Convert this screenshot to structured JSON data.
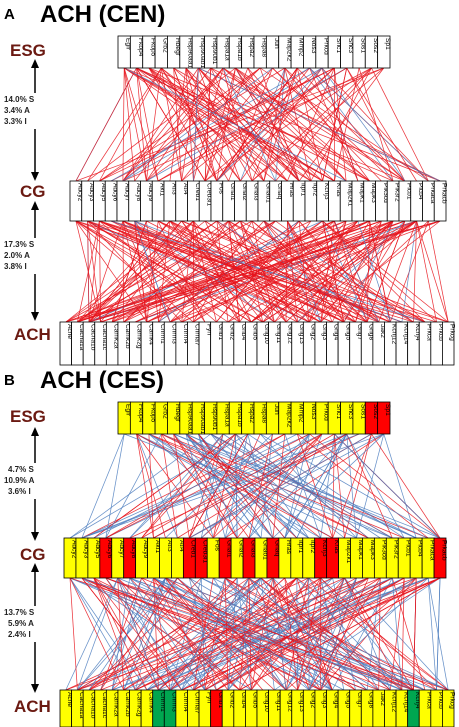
{
  "colors": {
    "red_link": "#e8141c",
    "blue_link": "#4f7fc0",
    "level_label": "#6b1a12",
    "box_yellow": "#ffff00",
    "box_red": "#ff0000",
    "box_green": "#00a650",
    "box_white": "#ffffff"
  },
  "panels": [
    {
      "letter": "A",
      "title": "ACH (CEN)",
      "levels": {
        "top": "ESG",
        "middle": "CG",
        "bottom": "ACH"
      },
      "stats_upper": [
        "14.0% S",
        "3.4% A",
        "3.3% I"
      ],
      "stats_lower": [
        "17.3% S",
        "2.0% A",
        "3.8% I"
      ],
      "esg_genes": [
        {
          "name": "Egfr",
          "color": "white"
        },
        {
          "name": "Fkbp4",
          "color": "white"
        },
        {
          "name": "Fkbp5",
          "color": "white"
        },
        {
          "name": "Grb2",
          "color": "white"
        },
        {
          "name": "Hbegf",
          "color": "white"
        },
        {
          "name": "Hsp90aa1",
          "color": "white"
        },
        {
          "name": "Hsp90ab1",
          "color": "white"
        },
        {
          "name": "Hsp90b1",
          "color": "white"
        },
        {
          "name": "Hspa1a",
          "color": "white"
        },
        {
          "name": "Hspa1b",
          "color": "white"
        },
        {
          "name": "Hspa2",
          "color": "white"
        },
        {
          "name": "Hspa8",
          "color": "white"
        },
        {
          "name": "Jun",
          "color": "white"
        },
        {
          "name": "Map2k2",
          "color": "white"
        },
        {
          "name": "Mmp2",
          "color": "white"
        },
        {
          "name": "Nos3",
          "color": "white"
        },
        {
          "name": "Prkcd",
          "color": "white"
        },
        {
          "name": "Shc1",
          "color": "white"
        },
        {
          "name": "Shc3",
          "color": "white"
        },
        {
          "name": "Sos1",
          "color": "white"
        },
        {
          "name": "Sos2",
          "color": "white"
        },
        {
          "name": "Sp1",
          "color": "white"
        }
      ],
      "cg_genes": [
        {
          "name": "Adcy2",
          "color": "white"
        },
        {
          "name": "Adcy3",
          "color": "white"
        },
        {
          "name": "Adcy5",
          "color": "white"
        },
        {
          "name": "Adcy6",
          "color": "white"
        },
        {
          "name": "Adcy7",
          "color": "white"
        },
        {
          "name": "Adcy8",
          "color": "white"
        },
        {
          "name": "Adcy9",
          "color": "white"
        },
        {
          "name": "Akt1",
          "color": "white"
        },
        {
          "name": "Atf3",
          "color": "white"
        },
        {
          "name": "Atf4",
          "color": "white"
        },
        {
          "name": "Creb1",
          "color": "white"
        },
        {
          "name": "Creb3l1",
          "color": "white"
        },
        {
          "name": "Fos",
          "color": "white"
        },
        {
          "name": "Gnai1",
          "color": "white"
        },
        {
          "name": "Gnai2",
          "color": "white"
        },
        {
          "name": "Gnai3",
          "color": "white"
        },
        {
          "name": "Gnao1",
          "color": "white"
        },
        {
          "name": "Gnaq",
          "color": "white"
        },
        {
          "name": "Hras",
          "color": "white"
        },
        {
          "name": "Itpr1",
          "color": "white"
        },
        {
          "name": "Itpr2",
          "color": "white"
        },
        {
          "name": "Kcnj3",
          "color": "white"
        },
        {
          "name": "Kras",
          "color": "white"
        },
        {
          "name": "Map2k1",
          "color": "white"
        },
        {
          "name": "Mapk1",
          "color": "white"
        },
        {
          "name": "Mapk3",
          "color": "white"
        },
        {
          "name": "Pik3cd",
          "color": "white"
        },
        {
          "name": "Pik3r2",
          "color": "white"
        },
        {
          "name": "Plcb1",
          "color": "white"
        },
        {
          "name": "Plcb4",
          "color": "white"
        },
        {
          "name": "Prkaca",
          "color": "white"
        },
        {
          "name": "Prkacb",
          "color": "white"
        }
      ],
      "ach_genes": [
        {
          "name": "Ache",
          "color": "white"
        },
        {
          "name": "Cacna1a",
          "color": "white"
        },
        {
          "name": "Cacna1b",
          "color": "white"
        },
        {
          "name": "Cacna1c",
          "color": "white"
        },
        {
          "name": "Camk2a",
          "color": "white"
        },
        {
          "name": "Camk2b",
          "color": "white"
        },
        {
          "name": "Camk2g",
          "color": "white"
        },
        {
          "name": "Camk4",
          "color": "white"
        },
        {
          "name": "Chrm1",
          "color": "white"
        },
        {
          "name": "Chrm3",
          "color": "white"
        },
        {
          "name": "Chrm4",
          "color": "white"
        },
        {
          "name": "Chrna7",
          "color": "white"
        },
        {
          "name": "Fyn",
          "color": "white"
        },
        {
          "name": "Gnb1",
          "color": "white"
        },
        {
          "name": "Gnb2",
          "color": "white"
        },
        {
          "name": "Gnb4",
          "color": "white"
        },
        {
          "name": "Gnb5",
          "color": "white"
        },
        {
          "name": "Gng10",
          "color": "white"
        },
        {
          "name": "Gng11",
          "color": "white"
        },
        {
          "name": "Gng12",
          "color": "white"
        },
        {
          "name": "Gng13",
          "color": "white"
        },
        {
          "name": "Gng2",
          "color": "white"
        },
        {
          "name": "Gng3",
          "color": "white"
        },
        {
          "name": "Gng4",
          "color": "white"
        },
        {
          "name": "Gng5",
          "color": "white"
        },
        {
          "name": "Gng7",
          "color": "white"
        },
        {
          "name": "Gng8",
          "color": "white"
        },
        {
          "name": "Jak2",
          "color": "white"
        },
        {
          "name": "Kcnj12",
          "color": "white"
        },
        {
          "name": "Kcnj14",
          "color": "white"
        },
        {
          "name": "Kcnj4",
          "color": "white"
        },
        {
          "name": "Prkca",
          "color": "white"
        },
        {
          "name": "Prkcb",
          "color": "white"
        },
        {
          "name": "Prkcg",
          "color": "white"
        }
      ]
    },
    {
      "letter": "B",
      "title": "ACH (CES)",
      "levels": {
        "top": "ESG",
        "middle": "CG",
        "bottom": "ACH"
      },
      "stats_upper": [
        "4.7% S",
        "10.9% A",
        "3.6% I"
      ],
      "stats_lower": [
        "13.7% S",
        "5.9% A",
        "2.4% I"
      ],
      "esg_genes": [
        {
          "name": "Egfr",
          "color": "yellow"
        },
        {
          "name": "Fkbp4",
          "color": "yellow"
        },
        {
          "name": "Fkbp5",
          "color": "yellow"
        },
        {
          "name": "Grb2",
          "color": "yellow"
        },
        {
          "name": "Hbegf",
          "color": "yellow"
        },
        {
          "name": "Hsp90aa1",
          "color": "yellow"
        },
        {
          "name": "Hsp90ab1",
          "color": "yellow"
        },
        {
          "name": "Hsp90b1",
          "color": "yellow"
        },
        {
          "name": "Hspa1a",
          "color": "yellow"
        },
        {
          "name": "Hspa1b",
          "color": "yellow"
        },
        {
          "name": "Hspa2",
          "color": "yellow"
        },
        {
          "name": "Hspa8",
          "color": "yellow"
        },
        {
          "name": "Jun",
          "color": "yellow"
        },
        {
          "name": "Map2k2",
          "color": "yellow"
        },
        {
          "name": "Mmp2",
          "color": "yellow"
        },
        {
          "name": "Nos3",
          "color": "yellow"
        },
        {
          "name": "Prkcd",
          "color": "yellow"
        },
        {
          "name": "Shc1",
          "color": "yellow"
        },
        {
          "name": "Shc3",
          "color": "yellow"
        },
        {
          "name": "Sos1",
          "color": "yellow"
        },
        {
          "name": "Sos2",
          "color": "red"
        },
        {
          "name": "Sp1",
          "color": "red"
        }
      ],
      "cg_genes": [
        {
          "name": "Adcy2",
          "color": "yellow"
        },
        {
          "name": "Adcy3",
          "color": "yellow"
        },
        {
          "name": "Adcy5",
          "color": "yellow"
        },
        {
          "name": "Adcy6",
          "color": "red"
        },
        {
          "name": "Adcy7",
          "color": "yellow"
        },
        {
          "name": "Adcy8",
          "color": "red"
        },
        {
          "name": "Adcy9",
          "color": "yellow"
        },
        {
          "name": "Akt1",
          "color": "yellow"
        },
        {
          "name": "Atf3",
          "color": "yellow"
        },
        {
          "name": "Atf4",
          "color": "yellow"
        },
        {
          "name": "Creb1",
          "color": "red"
        },
        {
          "name": "Creb3l1",
          "color": "red"
        },
        {
          "name": "Fos",
          "color": "yellow"
        },
        {
          "name": "Gnai1",
          "color": "red"
        },
        {
          "name": "Gnai2",
          "color": "yellow"
        },
        {
          "name": "Gnai3",
          "color": "red"
        },
        {
          "name": "Gnao1",
          "color": "yellow"
        },
        {
          "name": "Gnaq",
          "color": "red"
        },
        {
          "name": "Hras",
          "color": "yellow"
        },
        {
          "name": "Itpr1",
          "color": "yellow"
        },
        {
          "name": "Itpr2",
          "color": "yellow"
        },
        {
          "name": "Kcnj3",
          "color": "red"
        },
        {
          "name": "Kras",
          "color": "red"
        },
        {
          "name": "Map2k1",
          "color": "yellow"
        },
        {
          "name": "Mapk1",
          "color": "yellow"
        },
        {
          "name": "Mapk3",
          "color": "yellow"
        },
        {
          "name": "Pik3cd",
          "color": "yellow"
        },
        {
          "name": "Pik3r2",
          "color": "yellow"
        },
        {
          "name": "Plcb1",
          "color": "yellow"
        },
        {
          "name": "Plcb4",
          "color": "yellow"
        },
        {
          "name": "Prkaca",
          "color": "yellow"
        },
        {
          "name": "Prkacb",
          "color": "red"
        }
      ],
      "ach_genes": [
        {
          "name": "Ache",
          "color": "yellow"
        },
        {
          "name": "Cacna1a",
          "color": "yellow"
        },
        {
          "name": "Cacna1b",
          "color": "yellow"
        },
        {
          "name": "Cacna1c",
          "color": "yellow"
        },
        {
          "name": "Camk2a",
          "color": "yellow"
        },
        {
          "name": "Camk2b",
          "color": "yellow"
        },
        {
          "name": "Camk2g",
          "color": "yellow"
        },
        {
          "name": "Camk4",
          "color": "yellow"
        },
        {
          "name": "Chrm1",
          "color": "green"
        },
        {
          "name": "Chrm3",
          "color": "green"
        },
        {
          "name": "Chrm4",
          "color": "yellow"
        },
        {
          "name": "Chrna7",
          "color": "yellow"
        },
        {
          "name": "Fyn",
          "color": "yellow"
        },
        {
          "name": "Gnb1",
          "color": "red"
        },
        {
          "name": "Gnb2",
          "color": "yellow"
        },
        {
          "name": "Gnb4",
          "color": "yellow"
        },
        {
          "name": "Gnb5",
          "color": "yellow"
        },
        {
          "name": "Gng10",
          "color": "yellow"
        },
        {
          "name": "Gng11",
          "color": "yellow"
        },
        {
          "name": "Gng12",
          "color": "yellow"
        },
        {
          "name": "Gng13",
          "color": "yellow"
        },
        {
          "name": "Gng2",
          "color": "yellow"
        },
        {
          "name": "Gng3",
          "color": "yellow"
        },
        {
          "name": "Gng4",
          "color": "yellow"
        },
        {
          "name": "Gng5",
          "color": "yellow"
        },
        {
          "name": "Gng7",
          "color": "yellow"
        },
        {
          "name": "Gng8",
          "color": "yellow"
        },
        {
          "name": "Jak2",
          "color": "yellow"
        },
        {
          "name": "Kcnj12",
          "color": "yellow"
        },
        {
          "name": "Kcnj14",
          "color": "yellow"
        },
        {
          "name": "Kcnj4",
          "color": "green"
        },
        {
          "name": "Prkca",
          "color": "yellow"
        },
        {
          "name": "Prkcb",
          "color": "yellow"
        },
        {
          "name": "Prkcg",
          "color": "yellow"
        }
      ]
    }
  ]
}
